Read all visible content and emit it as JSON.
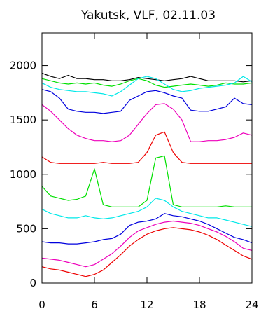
{
  "chart_data": {
    "type": "line",
    "title": "Yakutsk, VLF, 02.11.03",
    "xlabel": "",
    "ylabel": "",
    "xlim": [
      0,
      24
    ],
    "ylim": [
      0,
      2300
    ],
    "x_ticks": [
      0,
      6,
      12,
      18,
      24
    ],
    "x_tick_labels": [
      "0",
      "6",
      "12",
      "18",
      "24"
    ],
    "y_ticks": [
      0,
      500,
      1000,
      1500,
      2000
    ],
    "y_tick_labels": [
      "0",
      "500",
      "1000",
      "1500",
      "2000"
    ],
    "grid": false,
    "legend": "none",
    "series": [
      {
        "color": "#000000",
        "x": [
          0,
          1,
          2,
          3,
          4,
          5,
          6,
          7,
          8,
          9,
          10,
          11,
          12,
          13,
          14,
          15,
          16,
          17,
          18,
          19,
          20,
          21,
          22,
          23,
          24
        ],
        "y": [
          1930,
          1900,
          1880,
          1910,
          1880,
          1880,
          1870,
          1870,
          1860,
          1860,
          1870,
          1890,
          1880,
          1870,
          1860,
          1870,
          1880,
          1900,
          1880,
          1860,
          1860,
          1860,
          1860,
          1850,
          1860
        ]
      },
      {
        "color": "#00e000",
        "x": [
          0,
          1,
          2,
          3,
          4,
          5,
          6,
          7,
          8,
          9,
          10,
          11,
          12,
          13,
          14,
          15,
          16,
          17,
          18,
          19,
          20,
          21,
          22,
          23,
          24
        ],
        "y": [
          1880,
          1860,
          1840,
          1830,
          1840,
          1830,
          1840,
          1820,
          1810,
          1830,
          1860,
          1880,
          1860,
          1820,
          1800,
          1810,
          1820,
          1830,
          1820,
          1810,
          1820,
          1840,
          1830,
          1830,
          1840
        ]
      },
      {
        "color": "#00e8e8",
        "x": [
          0,
          1,
          2,
          3,
          4,
          5,
          6,
          7,
          8,
          9,
          10,
          11,
          12,
          13,
          14,
          15,
          16,
          17,
          18,
          19,
          20,
          21,
          22,
          23,
          24
        ],
        "y": [
          1840,
          1800,
          1780,
          1770,
          1760,
          1760,
          1750,
          1740,
          1720,
          1760,
          1820,
          1880,
          1900,
          1880,
          1830,
          1780,
          1760,
          1770,
          1790,
          1800,
          1810,
          1820,
          1840,
          1900,
          1850
        ]
      },
      {
        "color": "#0000dd",
        "x": [
          0,
          1,
          2,
          3,
          4,
          5,
          6,
          7,
          8,
          9,
          10,
          11,
          12,
          13,
          14,
          15,
          16,
          17,
          18,
          19,
          20,
          21,
          22,
          23,
          24
        ],
        "y": [
          1780,
          1760,
          1700,
          1600,
          1580,
          1570,
          1570,
          1560,
          1570,
          1580,
          1680,
          1720,
          1760,
          1770,
          1750,
          1720,
          1700,
          1590,
          1580,
          1580,
          1600,
          1620,
          1700,
          1650,
          1640
        ]
      },
      {
        "color": "#ee00bb",
        "x": [
          0,
          1,
          2,
          3,
          4,
          5,
          6,
          7,
          8,
          9,
          10,
          11,
          12,
          13,
          14,
          15,
          16,
          17,
          18,
          19,
          20,
          21,
          22,
          23,
          24
        ],
        "y": [
          1640,
          1580,
          1500,
          1420,
          1360,
          1330,
          1310,
          1310,
          1300,
          1310,
          1360,
          1460,
          1560,
          1640,
          1650,
          1600,
          1500,
          1300,
          1300,
          1310,
          1310,
          1320,
          1340,
          1380,
          1360
        ]
      },
      {
        "color": "#ee0000",
        "x": [
          0,
          1,
          2,
          3,
          4,
          5,
          6,
          7,
          8,
          9,
          10,
          11,
          12,
          13,
          14,
          15,
          16,
          17,
          18,
          19,
          20,
          21,
          22,
          23,
          24
        ],
        "y": [
          1160,
          1110,
          1100,
          1100,
          1100,
          1100,
          1100,
          1110,
          1100,
          1100,
          1100,
          1110,
          1200,
          1360,
          1390,
          1200,
          1110,
          1100,
          1100,
          1100,
          1100,
          1100,
          1100,
          1100,
          1100
        ]
      },
      {
        "color": "#00e000",
        "x": [
          0,
          1,
          2,
          3,
          4,
          5,
          6,
          7,
          8,
          9,
          10,
          11,
          12,
          13,
          14,
          15,
          16,
          17,
          18,
          19,
          20,
          21,
          22,
          23,
          24
        ],
        "y": [
          890,
          800,
          780,
          760,
          770,
          800,
          1050,
          720,
          700,
          700,
          700,
          700,
          760,
          1150,
          1170,
          720,
          700,
          700,
          700,
          700,
          700,
          710,
          700,
          700,
          700
        ]
      },
      {
        "color": "#00e8e8",
        "x": [
          0,
          1,
          2,
          3,
          4,
          5,
          6,
          7,
          8,
          9,
          10,
          11,
          12,
          13,
          14,
          15,
          16,
          17,
          18,
          19,
          20,
          21,
          22,
          23,
          24
        ],
        "y": [
          680,
          640,
          620,
          600,
          600,
          620,
          600,
          590,
          600,
          620,
          640,
          660,
          700,
          780,
          760,
          700,
          660,
          640,
          620,
          600,
          600,
          580,
          560,
          540,
          520
        ]
      },
      {
        "color": "#0000dd",
        "x": [
          0,
          1,
          2,
          3,
          4,
          5,
          6,
          7,
          8,
          9,
          10,
          11,
          12,
          13,
          14,
          15,
          16,
          17,
          18,
          19,
          20,
          21,
          22,
          23,
          24
        ],
        "y": [
          380,
          370,
          370,
          360,
          360,
          370,
          380,
          400,
          410,
          450,
          530,
          560,
          570,
          590,
          640,
          620,
          610,
          590,
          570,
          540,
          500,
          460,
          420,
          400,
          370
        ]
      },
      {
        "color": "#ee00bb",
        "x": [
          0,
          1,
          2,
          3,
          4,
          5,
          6,
          7,
          8,
          9,
          10,
          11,
          12,
          13,
          14,
          15,
          16,
          17,
          18,
          19,
          20,
          21,
          22,
          23,
          24
        ],
        "y": [
          230,
          220,
          210,
          190,
          170,
          150,
          170,
          220,
          270,
          340,
          420,
          480,
          510,
          540,
          560,
          570,
          560,
          550,
          530,
          500,
          470,
          430,
          380,
          320,
          300
        ]
      },
      {
        "color": "#ee0000",
        "x": [
          0,
          1,
          2,
          3,
          4,
          5,
          6,
          7,
          8,
          9,
          10,
          11,
          12,
          13,
          14,
          15,
          16,
          17,
          18,
          19,
          20,
          21,
          22,
          23,
          24
        ],
        "y": [
          150,
          130,
          120,
          100,
          80,
          60,
          80,
          120,
          190,
          260,
          340,
          400,
          450,
          480,
          500,
          510,
          500,
          490,
          470,
          440,
          400,
          350,
          300,
          250,
          220
        ]
      }
    ]
  }
}
